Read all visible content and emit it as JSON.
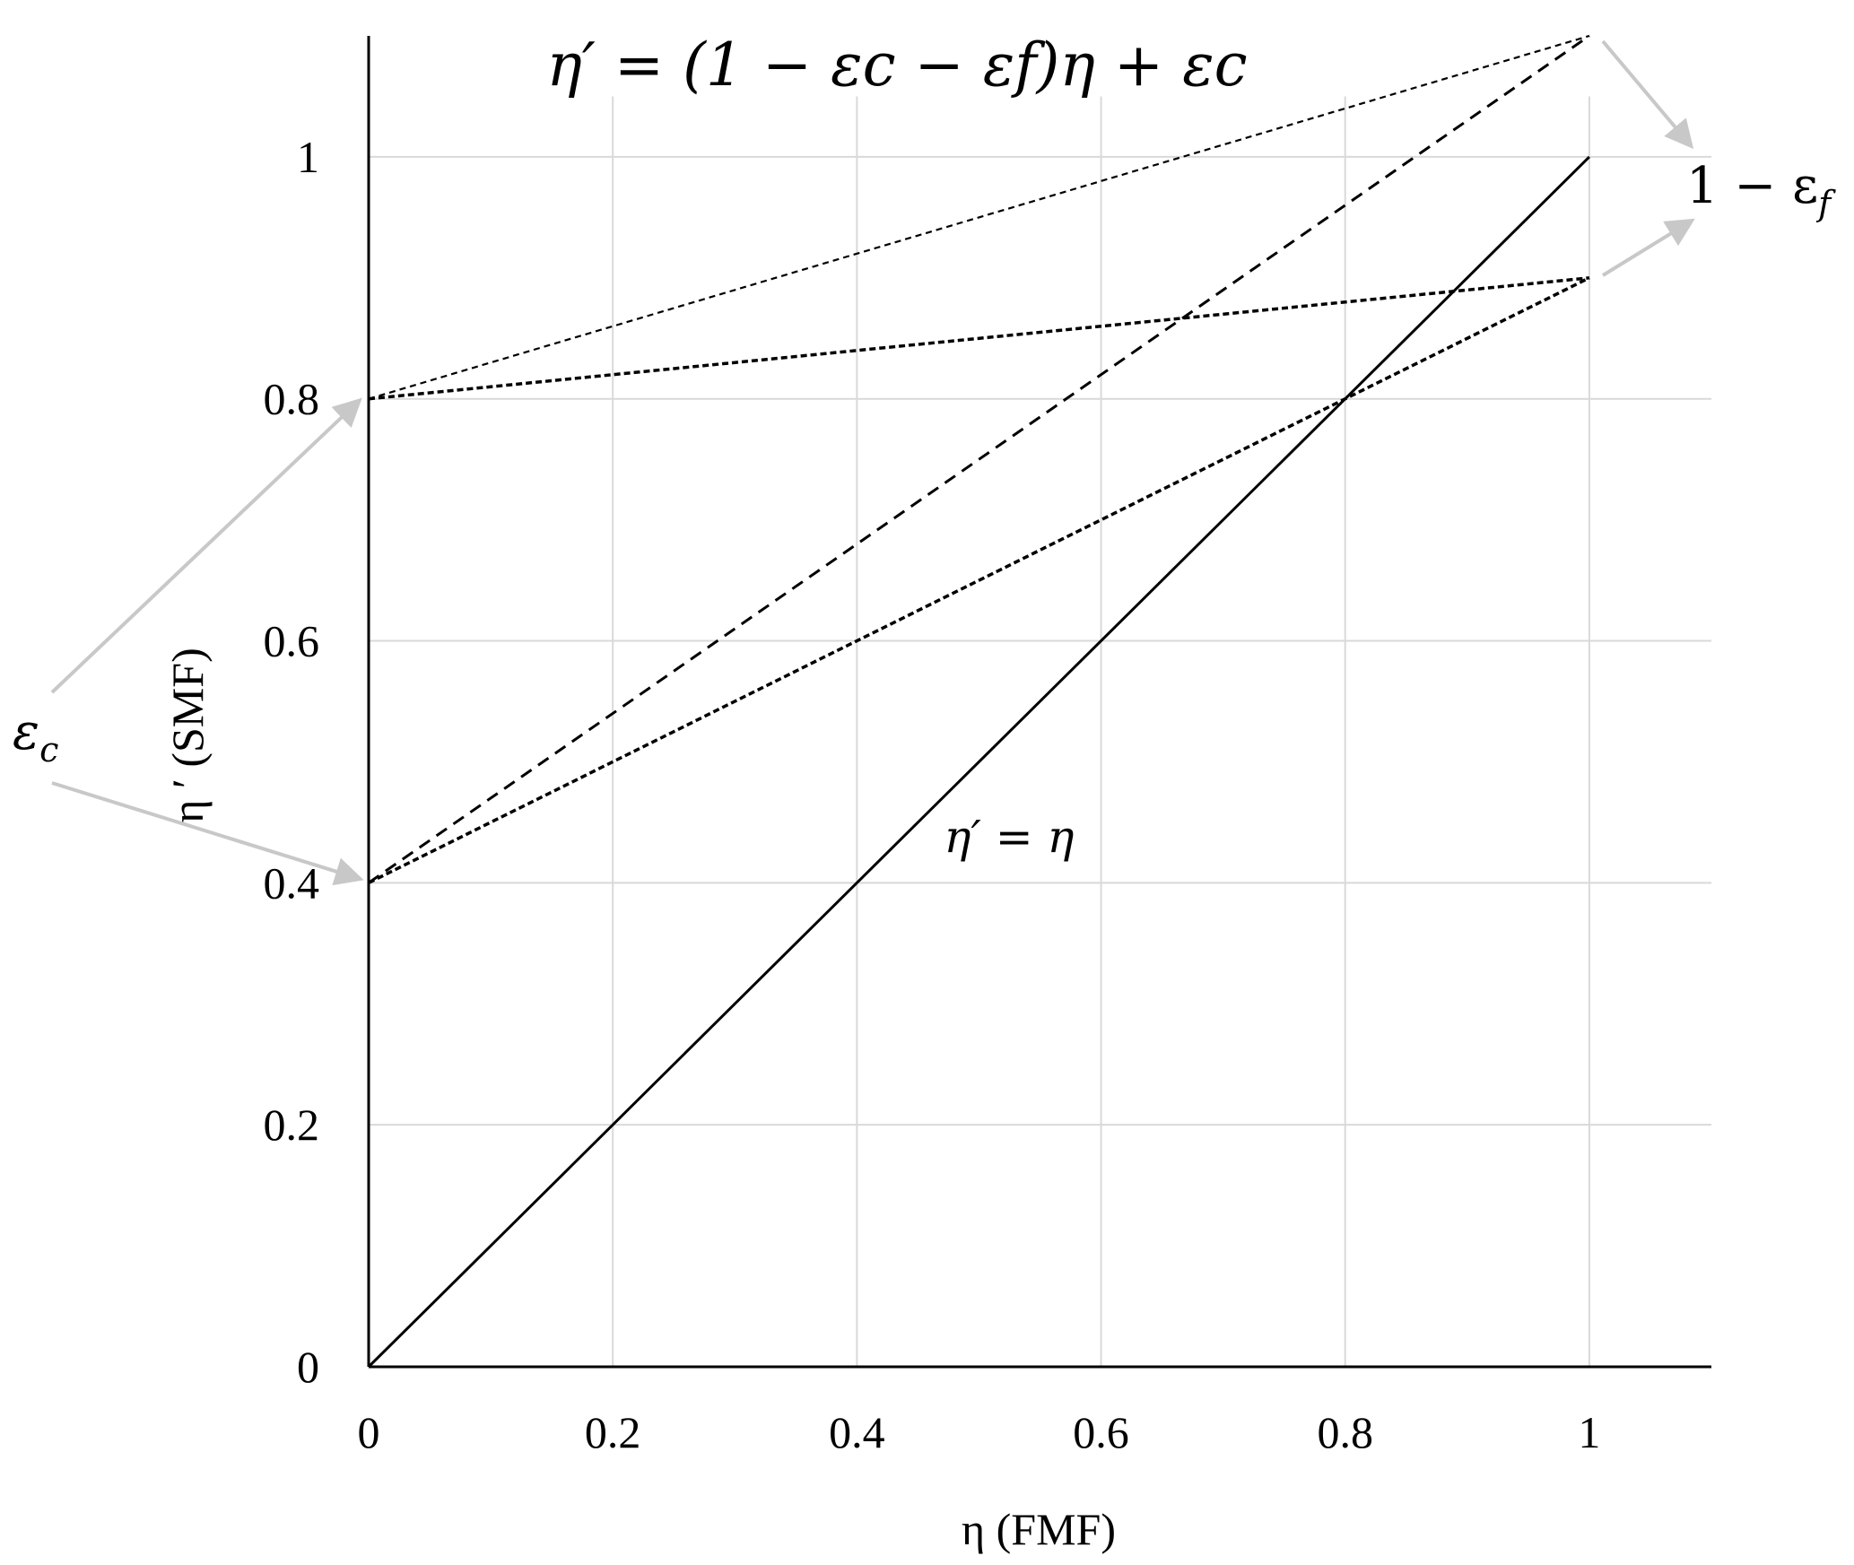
{
  "chart_data": {
    "type": "line",
    "title": "η′ = (1 − εc − εf)η + εc",
    "xlabel": "η (FMF)",
    "ylabel": "η ′ (SMF)",
    "xlim": [
      0,
      1.1
    ],
    "ylim": [
      0,
      1.1
    ],
    "grid": true,
    "x_ticks": [
      "0",
      "0.2",
      "0.4",
      "0.6",
      "0.8",
      "1"
    ],
    "y_ticks": [
      "0",
      "0.2",
      "0.4",
      "0.6",
      "0.8",
      "1"
    ],
    "x_tick_values": [
      0,
      0.2,
      0.4,
      0.6,
      0.8,
      1
    ],
    "y_tick_values": [
      0,
      0.2,
      0.4,
      0.6,
      0.8,
      1
    ],
    "series": [
      {
        "x": [
          0,
          1
        ],
        "y": [
          0,
          1
        ],
        "style": "solid"
      },
      {
        "x": [
          0,
          1
        ],
        "y": [
          0.4,
          1.1
        ],
        "style": "dashed"
      },
      {
        "x": [
          0,
          1
        ],
        "y": [
          0.4,
          0.9
        ],
        "style": "dotted"
      },
      {
        "x": [
          0,
          1
        ],
        "y": [
          0.8,
          1.1
        ],
        "style": "dotted-thin"
      },
      {
        "x": [
          0,
          1
        ],
        "y": [
          0.8,
          0.9
        ],
        "style": "dotted"
      }
    ],
    "annotations": {
      "identity": {
        "text": "η′ = η",
        "x": 0.47,
        "y": 0.42
      },
      "eps_c": {
        "base": "ε",
        "sub": "c"
      },
      "one_minus_eps_f": {
        "text": "1 − ε",
        "sub": "f"
      }
    },
    "colors": {
      "grid": "#d9d9d9",
      "arrows": "#c8c8c8",
      "lines": "#000000"
    }
  }
}
